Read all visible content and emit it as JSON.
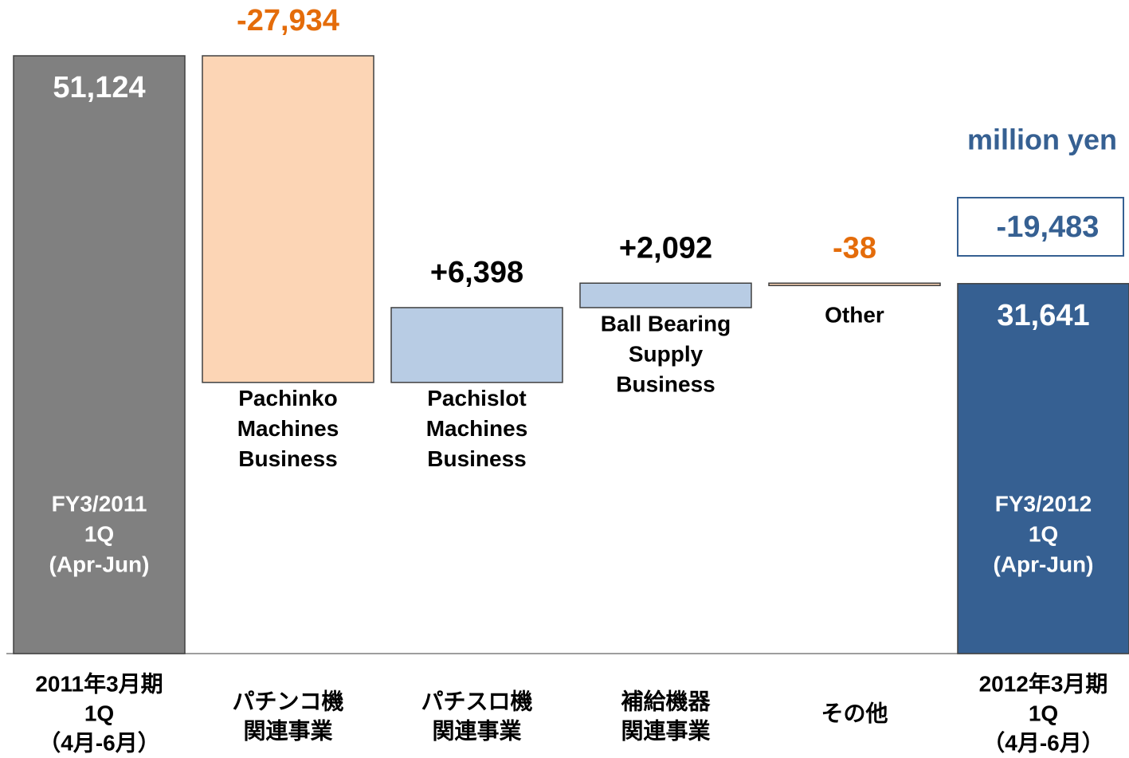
{
  "chart_data": {
    "type": "waterfall",
    "unit": "million yen",
    "annotation": "-19,483",
    "categories": [
      [
        "2011年3月期",
        "1Q",
        "（4月-6月）"
      ],
      [
        "パチンコ機",
        "関連事業"
      ],
      [
        "パチスロ機",
        "関連事業"
      ],
      [
        "補給機器",
        "関連事業"
      ],
      [
        "その他"
      ],
      [
        "2012年3月期",
        "1Q",
        "（4月-6月）"
      ]
    ],
    "bar_labels": [
      [
        "FY3/2011",
        "1Q",
        "(Apr-Jun)"
      ],
      [
        "Pachinko",
        "Machines",
        "Business"
      ],
      [
        "Pachislot",
        "Machines",
        "Business"
      ],
      [
        "Ball Bearing",
        "Supply",
        "Business"
      ],
      [
        "Other"
      ],
      [
        "FY3/2012",
        "1Q",
        "(Apr-Jun)"
      ]
    ],
    "values": [
      51124,
      -27934,
      6398,
      2092,
      -38,
      31641
    ],
    "value_labels": [
      "51,124",
      "-27,934",
      "+6,398",
      "+2,092",
      "-38",
      "31,641"
    ],
    "totals": [
      true,
      false,
      false,
      false,
      false,
      true
    ],
    "colors": [
      "#808080",
      "#fcd5b5",
      "#b8cce4",
      "#b8cce4",
      "#fcd5b5",
      "#366092"
    ]
  }
}
